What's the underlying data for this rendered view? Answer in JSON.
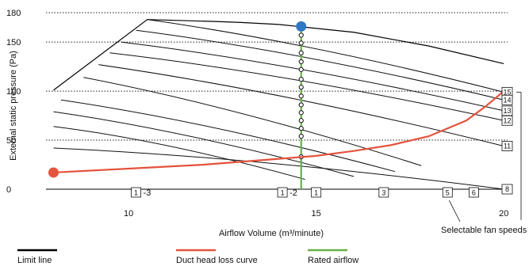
{
  "chart_data": {
    "type": "line",
    "xlabel": "Airflow Volume (m³/minute)",
    "ylabel": "External static pressure (Pa)",
    "xlim": [
      7.8,
      20.1
    ],
    "ylim": [
      0,
      180
    ],
    "x_ticks": [
      {
        "value": 10,
        "label": "10"
      },
      {
        "value": 15,
        "label": "15"
      },
      {
        "value": 20,
        "label": "20"
      }
    ],
    "y_ticks": [
      {
        "value": 0,
        "label": "0"
      },
      {
        "value": 50,
        "label": "50"
      },
      {
        "value": 100,
        "label": "100"
      },
      {
        "value": 150,
        "label": "150"
      },
      {
        "value": 180,
        "label": "180"
      }
    ],
    "dotted_gridlines_y": [
      50,
      100,
      150,
      180
    ],
    "fan_speed_curves": [
      {
        "label": "15",
        "start": [
          10.5,
          173
        ],
        "end": [
          20,
          99
        ]
      },
      {
        "label": "14",
        "start": [
          10.2,
          162
        ],
        "end": [
          20,
          91
        ]
      },
      {
        "label": "13",
        "start": [
          9.8,
          150
        ],
        "end": [
          20,
          80
        ]
      },
      {
        "label": "12",
        "start": [
          9.5,
          139
        ],
        "end": [
          20,
          70
        ]
      },
      {
        "label": "11",
        "start": [
          9.2,
          127
        ],
        "end": [
          20,
          44
        ]
      },
      {
        "label": "",
        "start": [
          8.8,
          114
        ],
        "end": [
          17.8,
          24
        ]
      },
      {
        "label": "",
        "start": [
          8.2,
          91
        ],
        "end": [
          17.1,
          18
        ]
      },
      {
        "label": "",
        "start": [
          8.0,
          79
        ],
        "end": [
          16.0,
          13
        ]
      },
      {
        "label": "",
        "start": [
          8.0,
          64
        ],
        "end": [
          14.7,
          10
        ]
      },
      {
        "label": "8",
        "start": [
          8.0,
          42
        ],
        "end": [
          20,
          0
        ]
      }
    ],
    "limit_line": [
      [
        8.0,
        101
      ],
      [
        10.5,
        173
      ],
      [
        12.3,
        171
      ],
      [
        13.0,
        170
      ],
      [
        14.0,
        168
      ],
      [
        16.0,
        160
      ],
      [
        18.0,
        146
      ],
      [
        20.0,
        128
      ]
    ],
    "rated_airflow": {
      "x": 14.6,
      "y": 166
    },
    "rated_markers_y": [
      157,
      149,
      139,
      130,
      122,
      112,
      104,
      95,
      86,
      78,
      70,
      62,
      54,
      33
    ],
    "duct_curve": [
      [
        8.0,
        17
      ],
      [
        10,
        21
      ],
      [
        12,
        25
      ],
      [
        14,
        31
      ],
      [
        15,
        34
      ],
      [
        16,
        39
      ],
      [
        17,
        45
      ],
      [
        18,
        54
      ],
      [
        19,
        70
      ],
      [
        19.5,
        84
      ],
      [
        20.0,
        100
      ]
    ],
    "duct_start_point": {
      "x": 8.0,
      "y": 17
    },
    "selectable_marks": [
      {
        "value": "1",
        "suffix": "-3",
        "x": 10.2
      },
      {
        "value": "1",
        "suffix": "-2",
        "x": 14.1
      },
      {
        "value": "1",
        "suffix": "",
        "x": 15.0
      },
      {
        "value": "3",
        "suffix": "",
        "x": 16.8
      },
      {
        "value": "5",
        "suffix": "",
        "x": 18.5
      },
      {
        "value": "6",
        "suffix": "",
        "x": 19.2
      }
    ],
    "annotation": "Selectable fan speeds",
    "legend": [
      {
        "label": "Limit line",
        "color": "#000000"
      },
      {
        "label": "Duct head loss curve",
        "color": "#d94a3a"
      },
      {
        "label": "Rated airflow",
        "color": "#5aa642"
      }
    ],
    "colors": {
      "limit": "#000000",
      "duct": "#e4533d",
      "rated": "#66b044",
      "rated_point": "#2f78c4",
      "grid": "#222222"
    }
  }
}
